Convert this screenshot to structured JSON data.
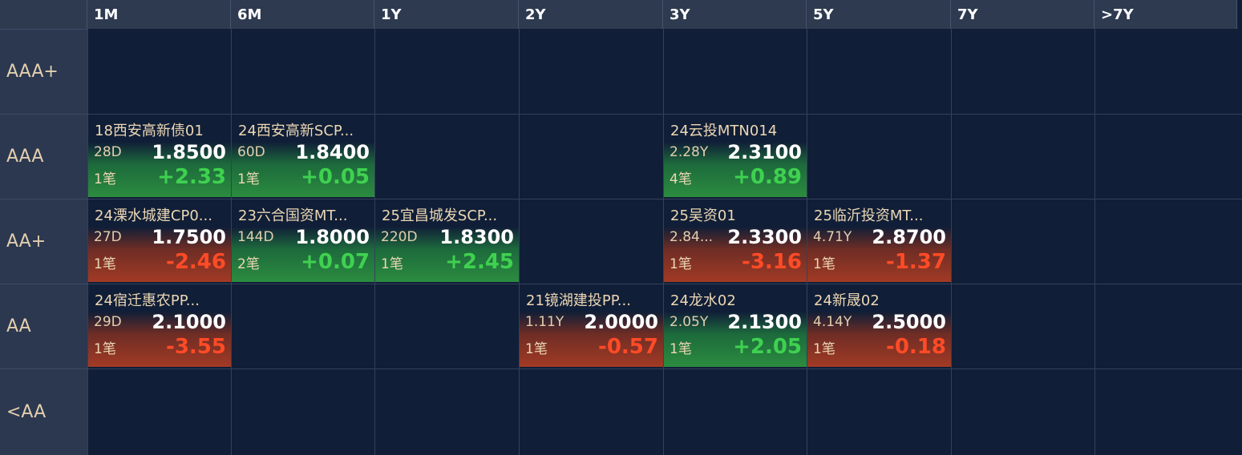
{
  "columns": [
    "1M",
    "6M",
    "1Y",
    "2Y",
    "3Y",
    "5Y",
    "7Y",
    ">7Y"
  ],
  "rows": [
    "AAA+",
    "AAA",
    "AA+",
    "AA",
    "<AA"
  ],
  "colors": {
    "up": "#3fd150",
    "down": "#ff4b26",
    "background": "#101e37",
    "header": "#2d3a50"
  },
  "cards": [
    {
      "row": 1,
      "col": 0,
      "name": "18西安高新债01",
      "term": "28D",
      "yield": "1.8500",
      "count": "1笔",
      "change": "+2.33",
      "dir": "up"
    },
    {
      "row": 1,
      "col": 1,
      "name": "24西安高新SCP...",
      "term": "60D",
      "yield": "1.8400",
      "count": "1笔",
      "change": "+0.05",
      "dir": "up"
    },
    {
      "row": 1,
      "col": 4,
      "name": "24云投MTN014",
      "term": "2.28Y",
      "yield": "2.3100",
      "count": "4笔",
      "change": "+0.89",
      "dir": "up"
    },
    {
      "row": 2,
      "col": 0,
      "name": "24溧水城建CP0...",
      "term": "27D",
      "yield": "1.7500",
      "count": "1笔",
      "change": "-2.46",
      "dir": "down"
    },
    {
      "row": 2,
      "col": 1,
      "name": "23六合国资MT...",
      "term": "144D",
      "yield": "1.8000",
      "count": "2笔",
      "change": "+0.07",
      "dir": "up"
    },
    {
      "row": 2,
      "col": 2,
      "name": "25宜昌城发SCP...",
      "term": "220D",
      "yield": "1.8300",
      "count": "1笔",
      "change": "+2.45",
      "dir": "up"
    },
    {
      "row": 2,
      "col": 4,
      "name": "25吴资01",
      "term": "2.84...",
      "yield": "2.3300",
      "count": "1笔",
      "change": "-3.16",
      "dir": "down"
    },
    {
      "row": 2,
      "col": 5,
      "name": "25临沂投资MT...",
      "term": "4.71Y",
      "yield": "2.8700",
      "count": "1笔",
      "change": "-1.37",
      "dir": "down"
    },
    {
      "row": 3,
      "col": 0,
      "name": "24宿迁惠农PP...",
      "term": "29D",
      "yield": "2.1000",
      "count": "1笔",
      "change": "-3.55",
      "dir": "down"
    },
    {
      "row": 3,
      "col": 3,
      "name": "21镜湖建投PP...",
      "term": "1.11Y",
      "yield": "2.0000",
      "count": "1笔",
      "change": "-0.57",
      "dir": "down"
    },
    {
      "row": 3,
      "col": 4,
      "name": "24龙水02",
      "term": "2.05Y",
      "yield": "2.1300",
      "count": "1笔",
      "change": "+2.05",
      "dir": "up"
    },
    {
      "row": 3,
      "col": 5,
      "name": "24新晟02",
      "term": "4.14Y",
      "yield": "2.5000",
      "count": "1笔",
      "change": "-0.18",
      "dir": "down"
    }
  ]
}
